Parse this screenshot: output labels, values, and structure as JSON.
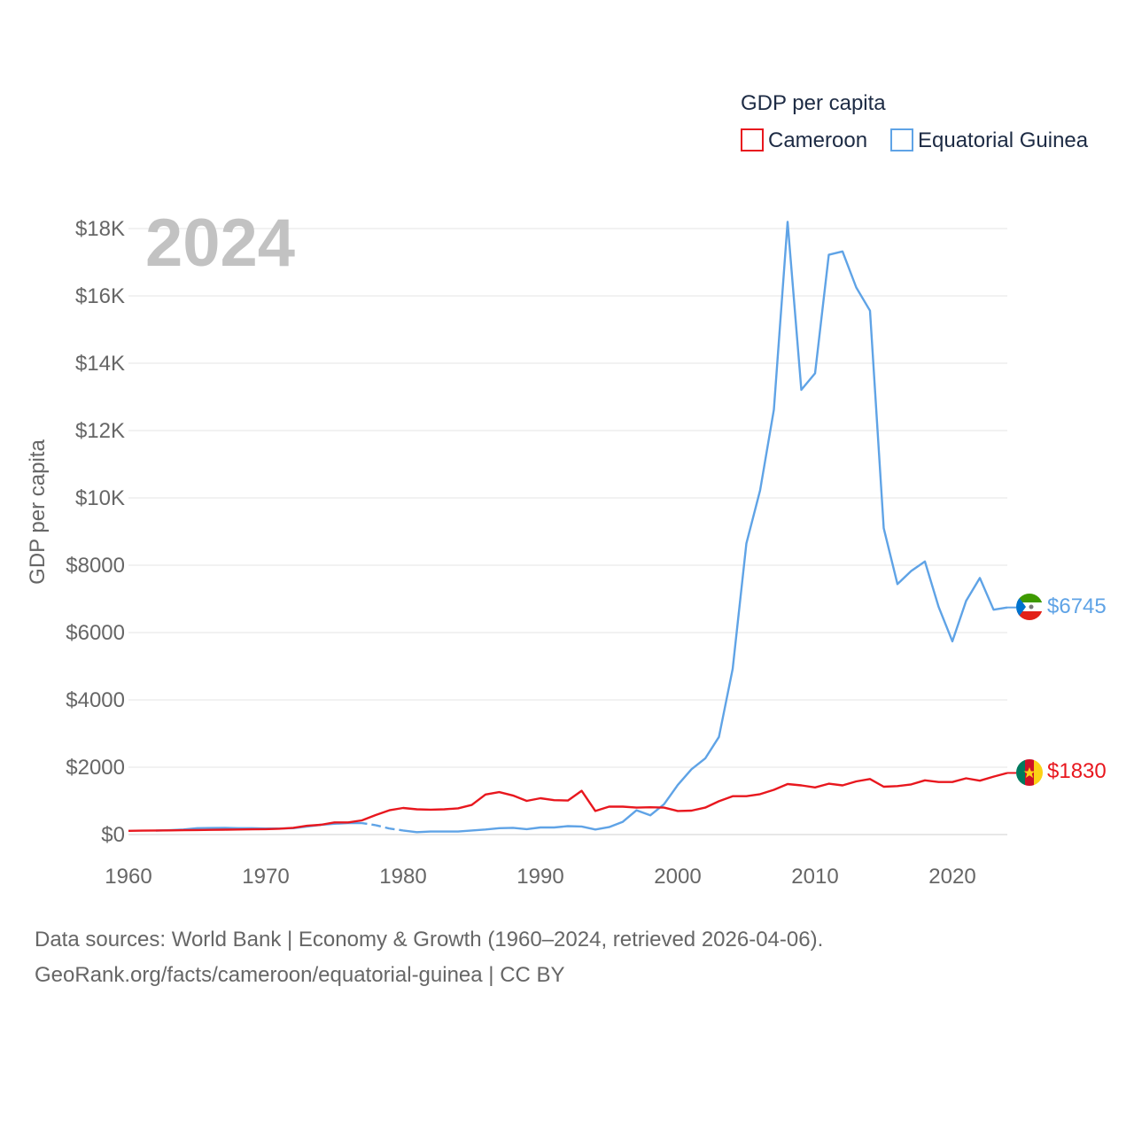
{
  "legend": {
    "title": "GDP per capita",
    "items": [
      {
        "label": "Cameroon",
        "color": "#e8171e"
      },
      {
        "label": "Equatorial Guinea",
        "color": "#5fa3e6"
      }
    ]
  },
  "year_label": "2024",
  "end_labels": {
    "equatorial_guinea": "$6745",
    "cameroon": "$1830"
  },
  "source": {
    "line1": "Data sources: World Bank | Economy & Growth (1960–2024, retrieved 2026-04-06).",
    "line2": "GeoRank.org/facts/cameroon/equatorial-guinea | CC BY"
  },
  "chart_data": {
    "type": "line",
    "title": "GDP per capita",
    "xlabel": "",
    "ylabel": "GDP per capita",
    "xlim": [
      1960,
      2024
    ],
    "ylim": [
      0,
      18000
    ],
    "x_ticks": [
      1960,
      1970,
      1980,
      1990,
      2000,
      2010,
      2020
    ],
    "x_tick_labels": [
      "1960",
      "1970",
      "1980",
      "1990",
      "2000",
      "2010",
      "2020"
    ],
    "y_ticks": [
      0,
      2000,
      4000,
      6000,
      8000,
      10000,
      12000,
      14000,
      16000,
      18000
    ],
    "y_tick_labels": [
      "$0",
      "$2000",
      "$4000",
      "$6000",
      "$8000",
      "$10K",
      "$12K",
      "$14K",
      "$16K",
      "$18K"
    ],
    "grid": true,
    "series": [
      {
        "name": "Cameroon",
        "color": "#e8171e",
        "x": [
          1960,
          1961,
          1962,
          1963,
          1964,
          1965,
          1966,
          1967,
          1968,
          1969,
          1970,
          1971,
          1972,
          1973,
          1974,
          1975,
          1976,
          1977,
          1978,
          1979,
          1980,
          1981,
          1982,
          1983,
          1984,
          1985,
          1986,
          1987,
          1988,
          1989,
          1990,
          1991,
          1992,
          1993,
          1994,
          1995,
          1996,
          1997,
          1998,
          1999,
          2000,
          2001,
          2002,
          2003,
          2004,
          2005,
          2006,
          2007,
          2008,
          2009,
          2010,
          2011,
          2012,
          2013,
          2014,
          2015,
          2016,
          2017,
          2018,
          2019,
          2020,
          2021,
          2022,
          2023,
          2024
        ],
        "values": [
          110,
          115,
          120,
          125,
          130,
          135,
          140,
          145,
          150,
          155,
          160,
          175,
          200,
          260,
          290,
          360,
          360,
          420,
          580,
          720,
          790,
          750,
          740,
          750,
          780,
          880,
          1190,
          1260,
          1160,
          1000,
          1080,
          1020,
          1010,
          1300,
          700,
          830,
          830,
          800,
          810,
          800,
          700,
          710,
          800,
          990,
          1140,
          1140,
          1200,
          1330,
          1500,
          1460,
          1400,
          1510,
          1460,
          1580,
          1650,
          1420,
          1440,
          1490,
          1610,
          1560,
          1560,
          1670,
          1600,
          1720,
          1830
        ]
      },
      {
        "name": "Equatorial Guinea",
        "color": "#5fa3e6",
        "x": [
          1962,
          1963,
          1964,
          1965,
          1966,
          1967,
          1968,
          1969,
          1970,
          1971,
          1972,
          1973,
          1974,
          1975,
          1976,
          1977,
          1978,
          1979,
          1980,
          1981,
          1982,
          1983,
          1984,
          1985,
          1986,
          1987,
          1988,
          1989,
          1990,
          1991,
          1992,
          1993,
          1994,
          1995,
          1996,
          1997,
          1998,
          1999,
          2000,
          2001,
          2002,
          2003,
          2004,
          2005,
          2006,
          2007,
          2008,
          2009,
          2010,
          2011,
          2012,
          2013,
          2014,
          2015,
          2016,
          2017,
          2018,
          2019,
          2020,
          2021,
          2022,
          2023,
          2024
        ],
        "values": [
          115,
          130,
          150,
          190,
          195,
          200,
          190,
          190,
          180,
          180,
          190,
          240,
          290,
          320,
          340,
          340,
          280,
          180,
          120,
          70,
          90,
          90,
          90,
          120,
          150,
          190,
          200,
          160,
          210,
          210,
          250,
          240,
          150,
          220,
          380,
          720,
          570,
          900,
          1470,
          1940,
          2260,
          2900,
          4920,
          8650,
          10230,
          12620,
          18200,
          13210,
          13700,
          17220,
          17320,
          16250,
          15560,
          9100,
          7440,
          7830,
          8110,
          6760,
          5740,
          6940,
          7620,
          6680,
          6745
        ],
        "gap_segments_dashed": [
          [
            1977,
            1980
          ]
        ]
      }
    ]
  }
}
